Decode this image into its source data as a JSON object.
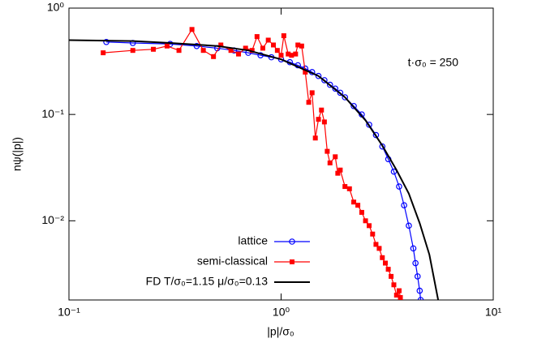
{
  "chart_data": {
    "type": "line",
    "xlabel": "|p|/σ₀",
    "ylabel": "nψ(|p|)",
    "annotation": "t·σ₀ = 250",
    "xscale": "log",
    "yscale": "log",
    "legend": "bottom",
    "xlim": [
      0.1,
      10
    ],
    "ylim": [
      0.0018,
      1
    ],
    "xticks": [
      {
        "value": 0.1,
        "label": "10⁻¹"
      },
      {
        "value": 1,
        "label": "10⁰"
      },
      {
        "value": 10,
        "label": "10¹"
      }
    ],
    "yticks": [
      {
        "value": 0.01,
        "label": "10⁻²"
      },
      {
        "value": 0.1,
        "label": "10⁻¹"
      },
      {
        "value": 1,
        "label": "10⁰"
      }
    ],
    "series": [
      {
        "name": "lattice",
        "color": "#0000ff",
        "marker": "circle",
        "x": [
          0.15,
          0.2,
          0.3,
          0.4,
          0.5,
          0.6,
          0.7,
          0.8,
          0.9,
          1.0,
          1.1,
          1.2,
          1.3,
          1.4,
          1.5,
          1.6,
          1.7,
          1.8,
          1.9,
          2.0,
          2.2,
          2.4,
          2.6,
          2.8,
          3.0,
          3.2,
          3.4,
          3.6,
          3.8,
          4.0,
          4.2,
          4.3,
          4.4,
          4.5,
          4.55
        ],
        "values": [
          0.48,
          0.47,
          0.46,
          0.44,
          0.42,
          0.4,
          0.38,
          0.36,
          0.345,
          0.33,
          0.31,
          0.29,
          0.27,
          0.25,
          0.23,
          0.21,
          0.19,
          0.175,
          0.16,
          0.145,
          0.12,
          0.1,
          0.08,
          0.064,
          0.05,
          0.038,
          0.029,
          0.021,
          0.014,
          0.009,
          0.0055,
          0.004,
          0.003,
          0.0022,
          0.0018
        ]
      },
      {
        "name": "semi-classical",
        "color": "#ff0000",
        "marker": "square",
        "x": [
          0.145,
          0.2,
          0.25,
          0.29,
          0.33,
          0.38,
          0.43,
          0.48,
          0.52,
          0.58,
          0.63,
          0.68,
          0.73,
          0.77,
          0.82,
          0.87,
          0.92,
          0.96,
          1.0,
          1.03,
          1.08,
          1.12,
          1.17,
          1.2,
          1.25,
          1.3,
          1.35,
          1.4,
          1.45,
          1.5,
          1.55,
          1.6,
          1.65,
          1.7,
          1.8,
          1.85,
          1.9,
          2.0,
          2.1,
          2.2,
          2.3,
          2.4,
          2.5,
          2.6,
          2.7,
          2.8,
          2.9,
          3.0,
          3.1,
          3.2,
          3.3,
          3.4,
          3.5,
          3.6,
          3.65
        ],
        "values": [
          0.38,
          0.4,
          0.41,
          0.44,
          0.4,
          0.63,
          0.4,
          0.35,
          0.45,
          0.4,
          0.37,
          0.42,
          0.4,
          0.54,
          0.42,
          0.5,
          0.45,
          0.4,
          0.36,
          0.55,
          0.37,
          0.36,
          0.37,
          0.45,
          0.44,
          0.25,
          0.13,
          0.16,
          0.06,
          0.09,
          0.11,
          0.085,
          0.045,
          0.035,
          0.04,
          0.028,
          0.03,
          0.021,
          0.02,
          0.015,
          0.014,
          0.012,
          0.01,
          0.009,
          0.0075,
          0.006,
          0.0055,
          0.0045,
          0.004,
          0.0035,
          0.003,
          0.0025,
          0.002,
          0.0022,
          0.0019
        ]
      },
      {
        "name": "FD T/σ₀=1.15 μ/σ₀=0.13",
        "color": "#000000",
        "marker": "none",
        "x": [
          0.1,
          0.2,
          0.3,
          0.5,
          0.7,
          1,
          1.5,
          2,
          2.5,
          3,
          3.5,
          4,
          4.5,
          5,
          5.5
        ],
        "values": [
          0.5,
          0.49,
          0.47,
          0.44,
          0.4,
          0.33,
          0.23,
          0.145,
          0.088,
          0.051,
          0.03,
          0.018,
          0.0095,
          0.0048,
          0.0018
        ]
      }
    ]
  }
}
